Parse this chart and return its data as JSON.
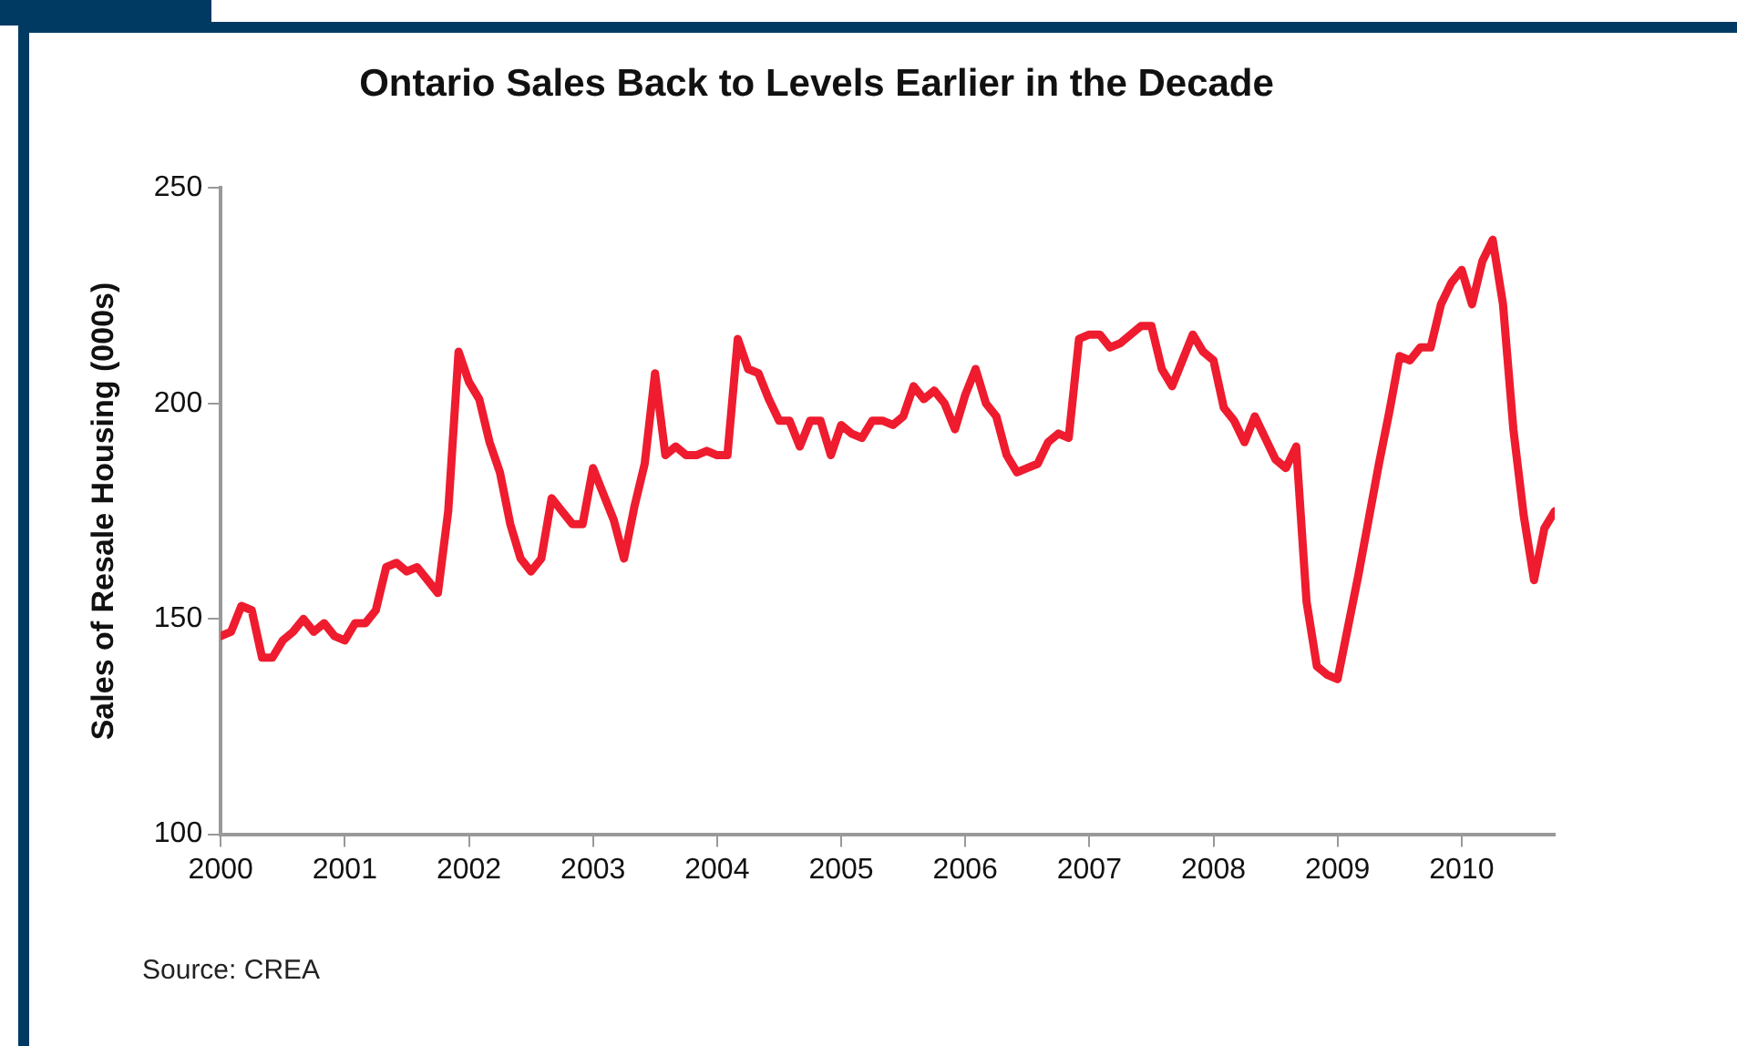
{
  "chart_data": {
    "type": "line",
    "title": "Ontario Sales Back to Levels Earlier in the Decade",
    "ylabel": "Sales of Resale Housing (000s)",
    "annotations": [
      "Source: CREA"
    ],
    "x": [
      "2000-01",
      "2000-02",
      "2000-03",
      "2000-04",
      "2000-05",
      "2000-06",
      "2000-07",
      "2000-08",
      "2000-09",
      "2000-10",
      "2000-11",
      "2000-12",
      "2001-01",
      "2001-02",
      "2001-03",
      "2001-04",
      "2001-05",
      "2001-06",
      "2001-07",
      "2001-08",
      "2001-09",
      "2001-10",
      "2001-11",
      "2001-12",
      "2002-01",
      "2002-02",
      "2002-03",
      "2002-04",
      "2002-05",
      "2002-06",
      "2002-07",
      "2002-08",
      "2002-09",
      "2002-10",
      "2002-11",
      "2002-12",
      "2003-01",
      "2003-02",
      "2003-03",
      "2003-04",
      "2003-05",
      "2003-06",
      "2003-07",
      "2003-08",
      "2003-09",
      "2003-10",
      "2003-11",
      "2003-12",
      "2004-01",
      "2004-02",
      "2004-03",
      "2004-04",
      "2004-05",
      "2004-06",
      "2004-07",
      "2004-08",
      "2004-09",
      "2004-10",
      "2004-11",
      "2004-12",
      "2005-01",
      "2005-02",
      "2005-03",
      "2005-04",
      "2005-05",
      "2005-06",
      "2005-07",
      "2005-08",
      "2005-09",
      "2005-10",
      "2005-11",
      "2005-12",
      "2006-01",
      "2006-02",
      "2006-03",
      "2006-04",
      "2006-05",
      "2006-06",
      "2006-07",
      "2006-08",
      "2006-09",
      "2006-10",
      "2006-11",
      "2006-12",
      "2007-01",
      "2007-02",
      "2007-03",
      "2007-04",
      "2007-05",
      "2007-06",
      "2007-07",
      "2007-08",
      "2007-09",
      "2007-10",
      "2007-11",
      "2007-12",
      "2008-01",
      "2008-02",
      "2008-03",
      "2008-04",
      "2008-05",
      "2008-06",
      "2008-07",
      "2008-08",
      "2008-09",
      "2008-10",
      "2008-11",
      "2008-12",
      "2009-01",
      "2009-02",
      "2009-03",
      "2009-04",
      "2009-05",
      "2009-06",
      "2009-07",
      "2009-08",
      "2009-09",
      "2009-10",
      "2009-11",
      "2009-12",
      "2010-01",
      "2010-02",
      "2010-03",
      "2010-04",
      "2010-05",
      "2010-06",
      "2010-07",
      "2010-08",
      "2010-09",
      "2010-10"
    ],
    "series": [
      {
        "color": "#ee1c2e",
        "values": [
          146,
          147,
          153,
          152,
          141,
          141,
          145,
          147,
          150,
          147,
          149,
          146,
          145,
          149,
          149,
          152,
          162,
          163,
          161,
          162,
          159,
          156,
          175,
          212,
          205,
          201,
          191,
          184,
          172,
          164,
          161,
          164,
          178,
          175,
          172,
          172,
          185,
          179,
          173,
          164,
          176,
          186,
          207,
          188,
          190,
          188,
          188,
          189,
          188,
          188,
          215,
          208,
          207,
          201,
          196,
          196,
          190,
          196,
          196,
          188,
          195,
          193,
          192,
          196,
          196,
          195,
          197,
          204,
          201,
          203,
          200,
          194,
          202,
          208,
          200,
          197,
          188,
          184,
          185,
          186,
          191,
          193,
          192,
          215,
          216,
          216,
          213,
          214,
          216,
          218,
          218,
          208,
          204,
          210,
          216,
          212,
          210,
          199,
          196,
          191,
          197,
          192,
          187,
          185,
          190,
          154,
          139,
          137,
          136,
          148,
          160,
          173,
          186,
          198,
          211,
          210,
          213,
          213,
          223,
          228,
          231,
          223,
          233,
          238,
          223,
          194,
          174,
          159,
          171,
          175
        ]
      }
    ],
    "xlim": [
      "2000-01",
      "2010-10"
    ],
    "xticks": [
      "2000",
      "2001",
      "2002",
      "2003",
      "2004",
      "2005",
      "2006",
      "2007",
      "2008",
      "2009",
      "2010"
    ],
    "ylim": [
      100,
      250
    ],
    "yticks": [
      100,
      150,
      200,
      250
    ],
    "grid": false,
    "legend": false,
    "marker": "none",
    "line_style": "solid"
  }
}
